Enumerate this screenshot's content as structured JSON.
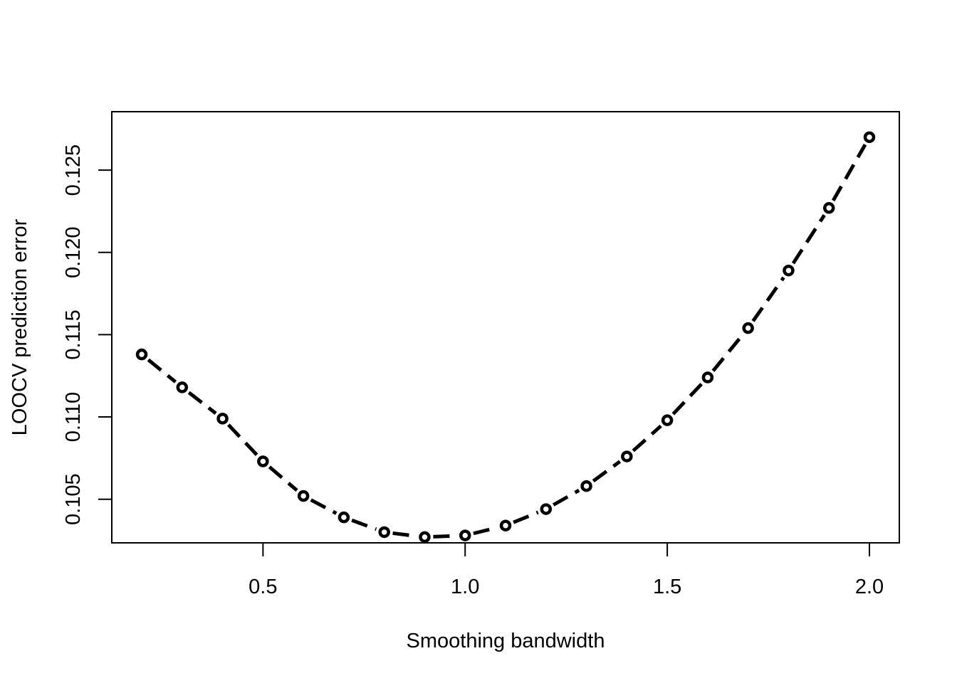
{
  "chart_data": {
    "type": "line",
    "title": "",
    "xlabel": "Smoothing bandwidth",
    "ylabel": "LOOCV prediction error",
    "x": [
      0.2,
      0.3,
      0.4,
      0.5,
      0.6,
      0.7,
      0.8,
      0.9,
      1.0,
      1.1,
      1.2,
      1.3,
      1.4,
      1.5,
      1.6,
      1.7,
      1.8,
      1.9,
      2.0
    ],
    "series": [
      {
        "values": [
          0.1138,
          0.1118,
          0.1099,
          0.1073,
          0.1052,
          0.1039,
          0.103,
          0.1027,
          0.1028,
          0.1034,
          0.1044,
          0.1058,
          0.1076,
          0.1098,
          0.1124,
          0.1154,
          0.1189,
          0.1227,
          0.127
        ]
      }
    ],
    "xlim": [
      0.126,
      2.074
    ],
    "ylim": [
      0.10235,
      0.12855
    ],
    "xticks": [
      0.5,
      1.0,
      1.5,
      2.0
    ],
    "xtick_labels": [
      "0.5",
      "1.0",
      "1.5",
      "2.0"
    ],
    "yticks": [
      0.105,
      0.11,
      0.115,
      0.12,
      0.125
    ],
    "ytick_labels": [
      "0.105",
      "0.110",
      "0.115",
      "0.120",
      "0.125"
    ],
    "line_style": "dashed",
    "marker": "open-circle",
    "grid": false,
    "legend": "none",
    "colors": {
      "line": "#000000",
      "marker_fill": "#ffffff",
      "background": "#ffffff"
    }
  }
}
